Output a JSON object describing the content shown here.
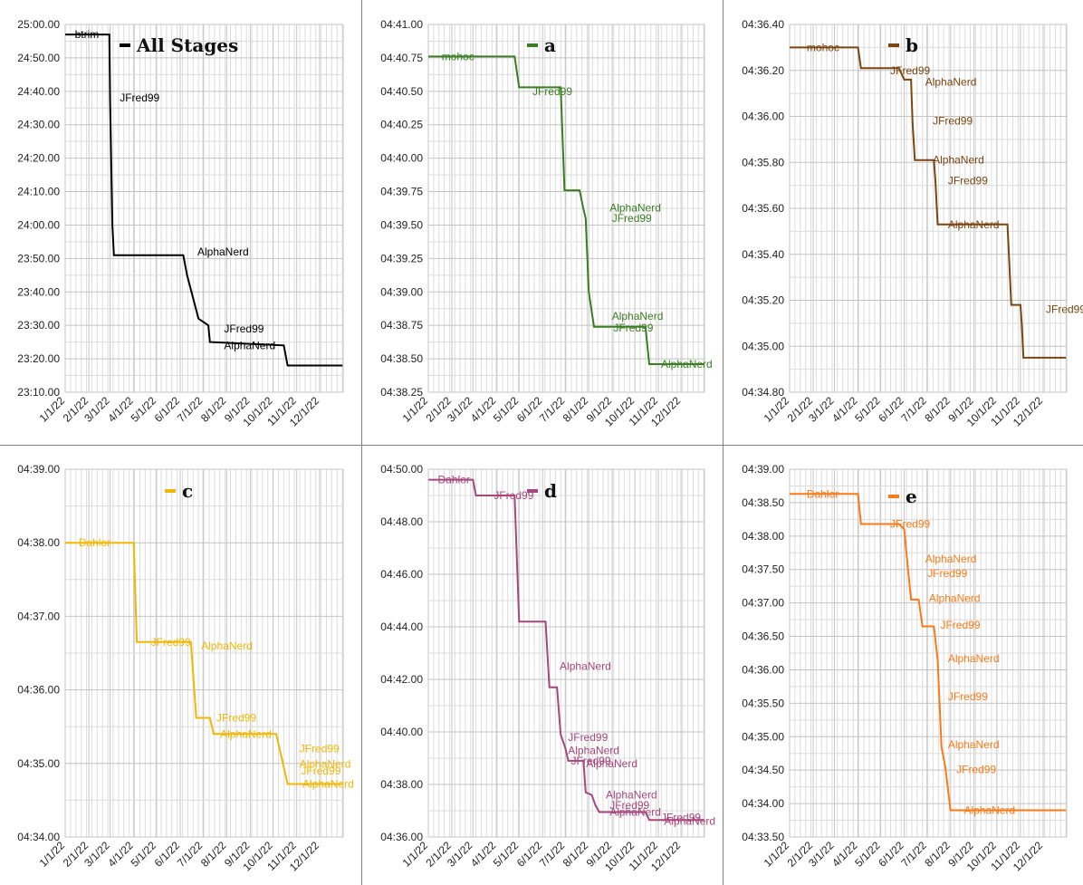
{
  "chart_data": [
    {
      "type": "line",
      "legend": "All Stages",
      "color": "#000000",
      "ylim": [
        1390,
        1500
      ],
      "yticks": [
        1390,
        1400,
        1410,
        1420,
        1430,
        1440,
        1450,
        1460,
        1470,
        1480,
        1490,
        1500
      ],
      "ytick_labels": [
        "23:10.00",
        "23:20.00",
        "23:30.00",
        "23:40.00",
        "23:50.00",
        "24:00.00",
        "24:10.00",
        "24:20.00",
        "24:30.00",
        "24:40.00",
        "24:50.00",
        "25:00.00"
      ],
      "x_range": [
        "2022-01-01",
        "2022-12-31"
      ],
      "xtick_labels": [
        "1/1/22",
        "2/1/22",
        "3/1/22",
        "4/1/22",
        "5/1/22",
        "6/1/22",
        "7/1/22",
        "8/1/22",
        "9/1/22",
        "10/1/22",
        "11/1/22",
        "12/1/22"
      ],
      "points": [
        [
          "2022-01-01",
          1497
        ],
        [
          "2022-02-28",
          1497
        ],
        [
          "2022-03-01",
          1477
        ],
        [
          "2022-03-04",
          1440
        ],
        [
          "2022-03-06",
          1431
        ],
        [
          "2022-06-05",
          1431
        ],
        [
          "2022-06-10",
          1425
        ],
        [
          "2022-06-25",
          1412
        ],
        [
          "2022-07-08",
          1410
        ],
        [
          "2022-07-10",
          1405
        ],
        [
          "2022-10-15",
          1404
        ],
        [
          "2022-10-20",
          1398
        ],
        [
          "2022-12-31",
          1398
        ]
      ],
      "annotations": [
        {
          "date": "2022-01-10",
          "value": 1497,
          "text": "btrim"
        },
        {
          "date": "2022-03-10",
          "value": 1478,
          "text": "JFred99"
        },
        {
          "date": "2022-06-20",
          "value": 1432,
          "text": "AlphaNerd"
        },
        {
          "date": "2022-07-25",
          "value": 1409,
          "text": "JFred99"
        },
        {
          "date": "2022-07-25",
          "value": 1404,
          "text": "AlphaNerd"
        }
      ]
    },
    {
      "type": "line",
      "legend": "a",
      "color": "#3a7d22",
      "ylim": [
        278.25,
        281
      ],
      "yticks": [
        278.25,
        278.5,
        278.75,
        279,
        279.25,
        279.5,
        279.75,
        280,
        280.25,
        280.5,
        280.75,
        281
      ],
      "ytick_labels": [
        "04:38.25",
        "04:38.50",
        "04:38.75",
        "04:39.00",
        "04:39.25",
        "04:39.50",
        "04:39.75",
        "04:40.00",
        "04:40.25",
        "04:40.50",
        "04:40.75",
        "04:41.00"
      ],
      "x_range": [
        "2022-01-01",
        "2022-12-31"
      ],
      "xtick_labels": [
        "1/1/22",
        "2/1/22",
        "3/1/22",
        "4/1/22",
        "5/1/22",
        "6/1/22",
        "7/1/22",
        "8/1/22",
        "9/1/22",
        "10/1/22",
        "11/1/22",
        "12/1/22"
      ],
      "points": [
        [
          "2022-01-01",
          280.76
        ],
        [
          "2022-04-25",
          280.76
        ],
        [
          "2022-05-01",
          280.53
        ],
        [
          "2022-06-25",
          280.53
        ],
        [
          "2022-06-30",
          279.76
        ],
        [
          "2022-07-20",
          279.76
        ],
        [
          "2022-07-25",
          279.62
        ],
        [
          "2022-07-28",
          279.55
        ],
        [
          "2022-08-01",
          279.0
        ],
        [
          "2022-08-08",
          278.74
        ],
        [
          "2022-10-15",
          278.74
        ],
        [
          "2022-10-20",
          278.46
        ],
        [
          "2022-12-31",
          278.46
        ]
      ],
      "annotations": [
        {
          "date": "2022-01-15",
          "value": 280.76,
          "text": "mohoc"
        },
        {
          "date": "2022-05-15",
          "value": 280.5,
          "text": "JFred99"
        },
        {
          "date": "2022-08-25",
          "value": 279.63,
          "text": "AlphaNerd"
        },
        {
          "date": "2022-08-28",
          "value": 279.55,
          "text": "JFred99"
        },
        {
          "date": "2022-08-28",
          "value": 278.82,
          "text": "AlphaNerd"
        },
        {
          "date": "2022-08-30",
          "value": 278.73,
          "text": "JFred99"
        },
        {
          "date": "2022-11-01",
          "value": 278.46,
          "text": "AlphaNerd"
        }
      ]
    },
    {
      "type": "line",
      "legend": "b",
      "color": "#7a4510",
      "ylim": [
        274.8,
        276.4
      ],
      "yticks": [
        274.8,
        275.0,
        275.2,
        275.4,
        275.6,
        275.8,
        276.0,
        276.2,
        276.4
      ],
      "ytick_labels": [
        "04:34.80",
        "04:35.00",
        "04:35.20",
        "04:35.40",
        "04:35.60",
        "04:35.80",
        "04:36.00",
        "04:36.20",
        "04:36.40"
      ],
      "x_range": [
        "2022-01-01",
        "2022-12-31"
      ],
      "xtick_labels": [
        "1/1/22",
        "2/1/22",
        "3/1/22",
        "4/1/22",
        "5/1/22",
        "6/1/22",
        "7/1/22",
        "8/1/22",
        "9/1/22",
        "10/1/22",
        "11/1/22",
        "12/1/22"
      ],
      "points": [
        [
          "2022-01-01",
          276.3
        ],
        [
          "2022-04-01",
          276.3
        ],
        [
          "2022-04-05",
          276.21
        ],
        [
          "2022-05-25",
          276.21
        ],
        [
          "2022-06-01",
          276.16
        ],
        [
          "2022-06-10",
          276.16
        ],
        [
          "2022-06-12",
          275.97
        ],
        [
          "2022-06-15",
          275.81
        ],
        [
          "2022-07-10",
          275.81
        ],
        [
          "2022-07-12",
          275.72
        ],
        [
          "2022-07-15",
          275.53
        ],
        [
          "2022-10-15",
          275.53
        ],
        [
          "2022-10-20",
          275.18
        ],
        [
          "2022-11-01",
          275.18
        ],
        [
          "2022-11-03",
          275.09
        ],
        [
          "2022-11-05",
          274.95
        ],
        [
          "2022-12-31",
          274.95
        ]
      ],
      "annotations": [
        {
          "date": "2022-01-20",
          "value": 276.3,
          "text": "mohoc"
        },
        {
          "date": "2022-05-10",
          "value": 276.2,
          "text": "JFred99"
        },
        {
          "date": "2022-06-25",
          "value": 276.15,
          "text": "AlphaNerd"
        },
        {
          "date": "2022-07-05",
          "value": 275.98,
          "text": "JFred99"
        },
        {
          "date": "2022-07-05",
          "value": 275.81,
          "text": "AlphaNerd"
        },
        {
          "date": "2022-07-25",
          "value": 275.72,
          "text": "JFred99"
        },
        {
          "date": "2022-07-25",
          "value": 275.53,
          "text": "AlphaNerd"
        },
        {
          "date": "2022-12-01",
          "value": 275.16,
          "text": "JFred99"
        }
      ]
    },
    {
      "type": "line",
      "legend": "c",
      "color": "#f2b705",
      "ylim": [
        274,
        279
      ],
      "yticks": [
        274,
        275,
        276,
        277,
        278,
        279
      ],
      "ytick_labels": [
        "04:34.00",
        "04:35.00",
        "04:36.00",
        "04:37.00",
        "04:38.00",
        "04:39.00"
      ],
      "x_range": [
        "2022-01-01",
        "2022-12-31"
      ],
      "xtick_labels": [
        "1/1/22",
        "2/1/22",
        "3/1/22",
        "4/1/22",
        "5/1/22",
        "6/1/22",
        "7/1/22",
        "8/1/22",
        "9/1/22",
        "10/1/22",
        "11/1/22",
        "12/1/22"
      ],
      "points": [
        [
          "2022-01-01",
          278.0
        ],
        [
          "2022-04-01",
          278.0
        ],
        [
          "2022-04-05",
          276.65
        ],
        [
          "2022-06-15",
          276.65
        ],
        [
          "2022-06-22",
          275.62
        ],
        [
          "2022-07-10",
          275.62
        ],
        [
          "2022-07-15",
          275.4
        ],
        [
          "2022-10-05",
          275.4
        ],
        [
          "2022-10-15",
          274.95
        ],
        [
          "2022-10-20",
          274.72
        ],
        [
          "2022-12-31",
          274.72
        ]
      ],
      "annotations": [
        {
          "date": "2022-01-15",
          "value": 278.0,
          "text": "Dahlor"
        },
        {
          "date": "2022-04-20",
          "value": 276.65,
          "text": "JFred99"
        },
        {
          "date": "2022-06-25",
          "value": 276.6,
          "text": "AlphaNerd"
        },
        {
          "date": "2022-07-15",
          "value": 275.62,
          "text": "JFred99"
        },
        {
          "date": "2022-07-20",
          "value": 275.4,
          "text": "AlphaNerd"
        },
        {
          "date": "2022-11-01",
          "value": 275.2,
          "text": "JFred99"
        },
        {
          "date": "2022-11-01",
          "value": 274.99,
          "text": "AlphaNerd"
        },
        {
          "date": "2022-11-03",
          "value": 274.9,
          "text": "JFred99"
        },
        {
          "date": "2022-11-05",
          "value": 274.72,
          "text": "AlphaNerd"
        }
      ]
    },
    {
      "type": "line",
      "legend": "d",
      "color": "#a6477b",
      "ylim": [
        276,
        290
      ],
      "yticks": [
        276,
        278,
        280,
        282,
        284,
        286,
        288,
        290
      ],
      "ytick_labels": [
        "04:36.00",
        "04:38.00",
        "04:40.00",
        "04:42.00",
        "04:44.00",
        "04:46.00",
        "04:48.00",
        "04:50.00"
      ],
      "x_range": [
        "2022-01-01",
        "2022-12-31"
      ],
      "xtick_labels": [
        "1/1/22",
        "2/1/22",
        "3/1/22",
        "4/1/22",
        "5/1/22",
        "6/1/22",
        "7/1/22",
        "8/1/22",
        "9/1/22",
        "10/1/22",
        "11/1/22",
        "12/1/22"
      ],
      "points": [
        [
          "2022-01-01",
          289.6
        ],
        [
          "2022-03-01",
          289.6
        ],
        [
          "2022-03-05",
          289.0
        ],
        [
          "2022-04-25",
          289.0
        ],
        [
          "2022-05-01",
          284.2
        ],
        [
          "2022-06-05",
          284.2
        ],
        [
          "2022-06-10",
          281.7
        ],
        [
          "2022-06-20",
          281.7
        ],
        [
          "2022-06-25",
          279.9
        ],
        [
          "2022-07-01",
          279.4
        ],
        [
          "2022-07-05",
          278.9
        ],
        [
          "2022-07-25",
          278.9
        ],
        [
          "2022-07-28",
          277.7
        ],
        [
          "2022-08-05",
          277.6
        ],
        [
          "2022-08-10",
          277.2
        ],
        [
          "2022-08-15",
          276.95
        ],
        [
          "2022-10-15",
          276.95
        ],
        [
          "2022-10-20",
          276.65
        ],
        [
          "2022-12-31",
          276.65
        ]
      ],
      "annotations": [
        {
          "date": "2022-01-10",
          "value": 289.6,
          "text": "Dahlor"
        },
        {
          "date": "2022-03-25",
          "value": 289.0,
          "text": "JFred99"
        },
        {
          "date": "2022-06-20",
          "value": 282.5,
          "text": "AlphaNerd"
        },
        {
          "date": "2022-07-01",
          "value": 279.8,
          "text": "JFred99"
        },
        {
          "date": "2022-07-01",
          "value": 279.3,
          "text": "AlphaNerd"
        },
        {
          "date": "2022-07-05",
          "value": 278.9,
          "text": "JFred99"
        },
        {
          "date": "2022-07-25",
          "value": 278.8,
          "text": "AlphaNerd"
        },
        {
          "date": "2022-08-20",
          "value": 277.6,
          "text": "AlphaNerd"
        },
        {
          "date": "2022-08-25",
          "value": 277.2,
          "text": "JFred99"
        },
        {
          "date": "2022-08-25",
          "value": 276.95,
          "text": "AlphaNerd"
        },
        {
          "date": "2022-11-01",
          "value": 276.75,
          "text": "JFred99"
        },
        {
          "date": "2022-11-05",
          "value": 276.6,
          "text": "AlphaNerd"
        }
      ]
    },
    {
      "type": "line",
      "legend": "e",
      "color": "#fb7a16",
      "ylim": [
        273.5,
        279
      ],
      "yticks": [
        273.5,
        274,
        274.5,
        275,
        275.5,
        276,
        276.5,
        277,
        277.5,
        278,
        278.5,
        279
      ],
      "ytick_labels": [
        "04:33.50",
        "04:34.00",
        "04:34.50",
        "04:35.00",
        "04:35.50",
        "04:36.00",
        "04:36.50",
        "04:37.00",
        "04:37.50",
        "04:38.00",
        "04:38.50",
        "04:39.00"
      ],
      "x_range": [
        "2022-01-01",
        "2022-12-31"
      ],
      "xtick_labels": [
        "1/1/22",
        "2/1/22",
        "3/1/22",
        "4/1/22",
        "5/1/22",
        "6/1/22",
        "7/1/22",
        "8/1/22",
        "9/1/22",
        "10/1/22",
        "11/1/22",
        "12/1/22"
      ],
      "points": [
        [
          "2022-01-01",
          278.63
        ],
        [
          "2022-04-01",
          278.63
        ],
        [
          "2022-04-05",
          278.18
        ],
        [
          "2022-05-25",
          278.18
        ],
        [
          "2022-06-01",
          278.1
        ],
        [
          "2022-06-05",
          277.62
        ],
        [
          "2022-06-10",
          277.05
        ],
        [
          "2022-06-20",
          277.05
        ],
        [
          "2022-06-25",
          276.65
        ],
        [
          "2022-07-10",
          276.65
        ],
        [
          "2022-07-15",
          276.15
        ],
        [
          "2022-07-20",
          274.85
        ],
        [
          "2022-07-25",
          274.55
        ],
        [
          "2022-08-01",
          273.9
        ],
        [
          "2022-12-31",
          273.9
        ]
      ],
      "annotations": [
        {
          "date": "2022-01-20",
          "value": 278.63,
          "text": "Dahlor"
        },
        {
          "date": "2022-05-10",
          "value": 278.18,
          "text": "JFred99"
        },
        {
          "date": "2022-06-25",
          "value": 277.66,
          "text": "AlphaNerd"
        },
        {
          "date": "2022-06-28",
          "value": 277.44,
          "text": "JFred99"
        },
        {
          "date": "2022-06-30",
          "value": 277.07,
          "text": "AlphaNerd"
        },
        {
          "date": "2022-07-15",
          "value": 276.67,
          "text": "JFred99"
        },
        {
          "date": "2022-07-25",
          "value": 276.17,
          "text": "AlphaNerd"
        },
        {
          "date": "2022-07-25",
          "value": 275.6,
          "text": "JFred99"
        },
        {
          "date": "2022-07-25",
          "value": 274.88,
          "text": "AlphaNerd"
        },
        {
          "date": "2022-08-05",
          "value": 274.51,
          "text": "JFred99"
        },
        {
          "date": "2022-08-15",
          "value": 273.9,
          "text": "AlphaNerd"
        }
      ]
    }
  ]
}
